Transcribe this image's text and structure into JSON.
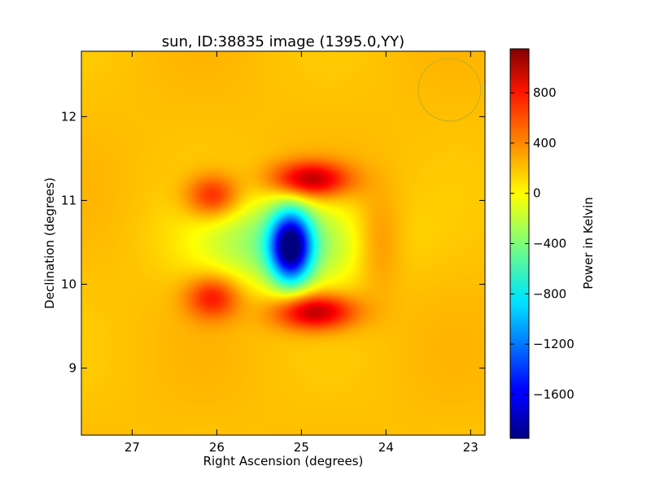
{
  "chart_data": {
    "type": "heatmap",
    "title": "sun, ID:38835 image (1395.0,YY)",
    "xlabel": "Right Ascension (degrees)",
    "ylabel": "Declination (degrees)",
    "colorbar_label": "Power in Kelvin",
    "xlim": [
      27.6,
      22.83
    ],
    "ylim": [
      8.2,
      12.78
    ],
    "xticks": [
      27,
      26,
      25,
      24,
      23
    ],
    "yticks": [
      9,
      10,
      11,
      12
    ],
    "colorbar_range": [
      -1950,
      1150
    ],
    "colorbar_ticks": [
      800,
      400,
      0,
      -400,
      -800,
      -1200,
      -1600
    ],
    "colormap": "jet",
    "grid": false,
    "background_value": 180,
    "features": [
      {
        "ra": 25.13,
        "dec": 10.45,
        "sx": 0.17,
        "sy": 0.3,
        "value": -1800
      },
      {
        "ra": 25.2,
        "dec": 10.5,
        "sx": 0.7,
        "sy": 0.38,
        "value": -600
      },
      {
        "ra": 24.9,
        "dec": 11.25,
        "sx": 0.32,
        "sy": 0.15,
        "value": 820
      },
      {
        "ra": 24.85,
        "dec": 9.68,
        "sx": 0.33,
        "sy": 0.15,
        "value": 850
      },
      {
        "ra": 26.05,
        "dec": 11.05,
        "sx": 0.22,
        "sy": 0.18,
        "value": 550
      },
      {
        "ra": 26.05,
        "dec": 9.85,
        "sx": 0.22,
        "sy": 0.18,
        "value": 550
      },
      {
        "ra": 24.1,
        "dec": 10.5,
        "sx": 0.2,
        "sy": 0.4,
        "value": 250
      }
    ],
    "beam": {
      "ra": 23.25,
      "dec": 12.32,
      "radius_deg": 0.37,
      "color": "#c9b020"
    }
  }
}
